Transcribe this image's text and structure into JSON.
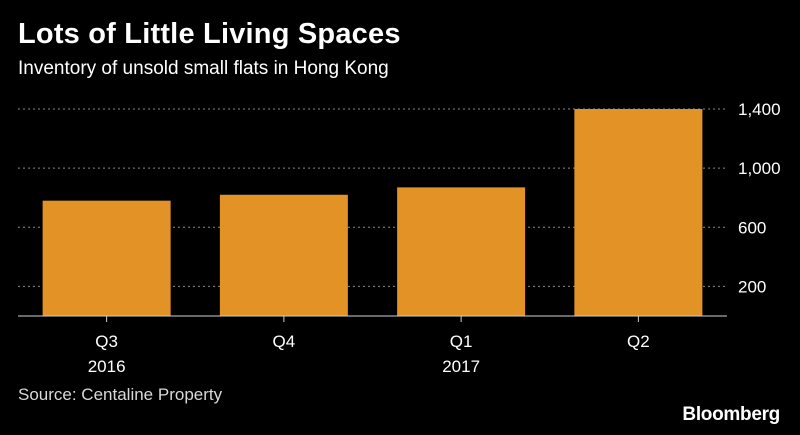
{
  "header": {
    "title": "Lots of Little Living Spaces",
    "subtitle": "Inventory of unsold small flats in Hong Kong"
  },
  "footer": {
    "source": "Source: Centaline Property",
    "brand": "Bloomberg"
  },
  "colors": {
    "background": "#000000",
    "bar": "#E39226",
    "grid": "#8a8a8a",
    "text": "#ffffff"
  },
  "chart_data": {
    "type": "bar",
    "title": "Lots of Little Living Spaces",
    "subtitle": "Inventory of unsold small flats in Hong Kong",
    "categories": [
      "Q3",
      "Q4",
      "Q1",
      "Q2"
    ],
    "category_years": [
      "2016",
      "",
      "2017",
      ""
    ],
    "values": [
      780,
      820,
      870,
      1400
    ],
    "yticks": [
      200,
      600,
      1000,
      1400
    ],
    "ytick_labels": [
      "200",
      "600",
      "1,000",
      "1,400"
    ],
    "ylim": [
      0,
      1400
    ],
    "grid": true,
    "y_axis_position": "right",
    "xlabel": "",
    "ylabel": ""
  }
}
